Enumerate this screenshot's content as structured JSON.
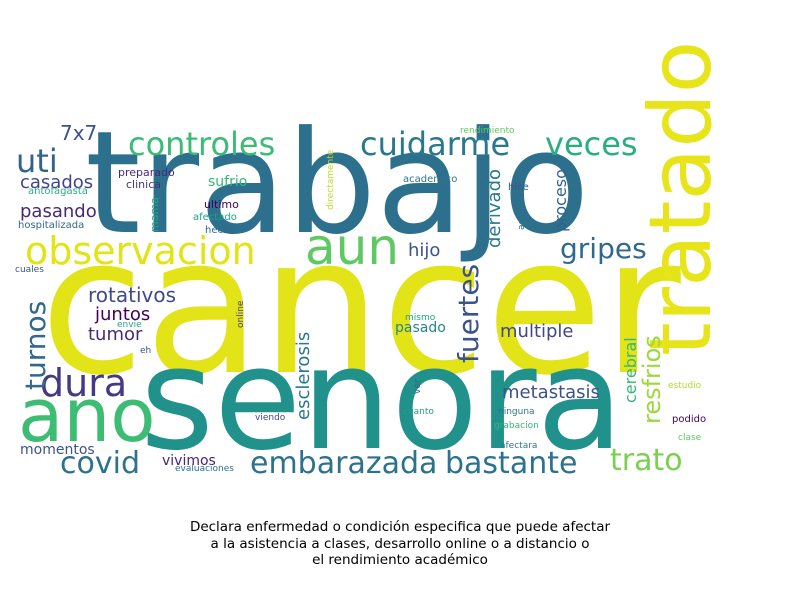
{
  "caption": {
    "line1": "Declara enfermedad o condición especifica que puede afectar",
    "line2": "a la asistencia a clases, desarrollo online o a distancio o",
    "line3": "el rendimiento académico"
  },
  "word_cloud": {
    "words": [
      {
        "text": "cancer",
        "color": "#e2e418"
      },
      {
        "text": "trabajo",
        "color": "#2d708e"
      },
      {
        "text": "senora",
        "color": "#21918c"
      },
      {
        "text": "tratado",
        "color": "#e7e419"
      },
      {
        "text": "ano",
        "color": "#3dbc74"
      },
      {
        "text": "observacion",
        "color": "#e2e418"
      },
      {
        "text": "aun",
        "color": "#5ec962"
      },
      {
        "text": "controles",
        "color": "#3bbb75"
      },
      {
        "text": "cuidarme",
        "color": "#2a788e"
      },
      {
        "text": "veces",
        "color": "#29af7f"
      },
      {
        "text": "dura",
        "color": "#443983"
      },
      {
        "text": "covid",
        "color": "#2c728e"
      },
      {
        "text": "embarazada",
        "color": "#2c728e"
      },
      {
        "text": "bastante",
        "color": "#2c728e"
      },
      {
        "text": "trato",
        "color": "#7ad151"
      },
      {
        "text": "gripes",
        "color": "#31688e"
      },
      {
        "text": "uti",
        "color": "#33638d"
      },
      {
        "text": "fuertes",
        "color": "#3b528b"
      },
      {
        "text": "turnos",
        "color": "#31688e"
      },
      {
        "text": "resfrios",
        "color": "#9bd93c"
      },
      {
        "text": "rotativos",
        "color": "#3e4a89"
      },
      {
        "text": "multiple",
        "color": "#3f4889"
      },
      {
        "text": "esclerosis",
        "color": "#2a788e"
      },
      {
        "text": "metastasis",
        "color": "#3b528b"
      },
      {
        "text": "7x7",
        "color": "#3b528b"
      },
      {
        "text": "casados",
        "color": "#414487"
      },
      {
        "text": "pasando",
        "color": "#482878"
      },
      {
        "text": "juntos",
        "color": "#440154"
      },
      {
        "text": "tumor",
        "color": "#472c7a"
      },
      {
        "text": "hijo",
        "color": "#3b528b"
      },
      {
        "text": "derivado",
        "color": "#2a788e"
      },
      {
        "text": "proceso",
        "color": "#33638d"
      },
      {
        "text": "cerebral",
        "color": "#35b779"
      },
      {
        "text": "pasado",
        "color": "#25858e"
      },
      {
        "text": "vivimos",
        "color": "#482475"
      },
      {
        "text": "momentos",
        "color": "#3b528b"
      },
      {
        "text": "sufrio",
        "color": "#35b779"
      },
      {
        "text": "mama",
        "color": "#22a785"
      },
      {
        "text": "ultimo",
        "color": "#440154"
      },
      {
        "text": "preparado",
        "color": "#482878"
      },
      {
        "text": "clinica",
        "color": "#46327e"
      },
      {
        "text": "antofagasta",
        "color": "#28ae80"
      },
      {
        "text": "hospitalizada",
        "color": "#31688e"
      },
      {
        "text": "afectado",
        "color": "#20a386"
      },
      {
        "text": "hecho",
        "color": "#31688e"
      },
      {
        "text": "directamente",
        "color": "#bddf26"
      },
      {
        "text": "rendimiento",
        "color": "#5ec962"
      },
      {
        "text": "academico",
        "color": "#2c728e"
      },
      {
        "text": "hice",
        "color": "#3b528b"
      },
      {
        "text": "aqui",
        "color": "#2c728e"
      },
      {
        "text": "cuales",
        "color": "#3b528b"
      },
      {
        "text": "online",
        "color": "#433e85"
      },
      {
        "text": "envie",
        "color": "#22a785"
      },
      {
        "text": "mismo",
        "color": "#20a386"
      },
      {
        "text": "eh",
        "color": "#3b528b"
      },
      {
        "text": "ver",
        "color": "#33638d"
      },
      {
        "text": "cuanto",
        "color": "#1fa088"
      },
      {
        "text": "ninguna",
        "color": "#2c728e"
      },
      {
        "text": "grabacion",
        "color": "#35b779"
      },
      {
        "text": "afectara",
        "color": "#2a788e"
      },
      {
        "text": "viendo",
        "color": "#3e4a89"
      },
      {
        "text": "evaluaciones",
        "color": "#2c728e"
      },
      {
        "text": "estudio",
        "color": "#addc30"
      },
      {
        "text": "podido",
        "color": "#440154"
      },
      {
        "text": "clase",
        "color": "#5ec962"
      }
    ]
  }
}
